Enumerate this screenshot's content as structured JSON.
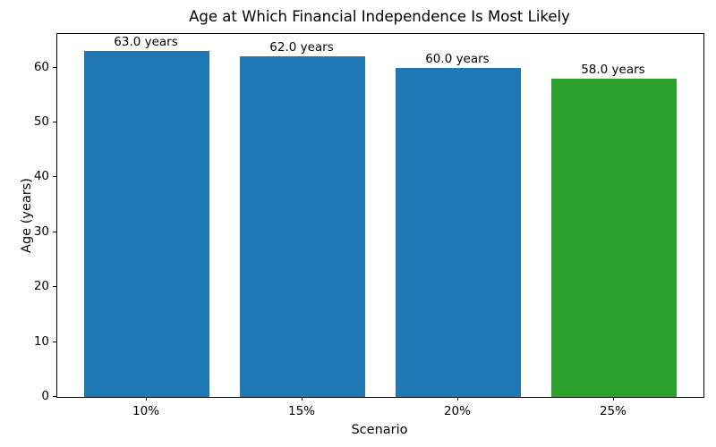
{
  "chart_data": {
    "type": "bar",
    "title": "Age at Which Financial Independence Is Most Likely",
    "xlabel": "Scenario",
    "ylabel": "Age (years)",
    "categories": [
      "10%",
      "15%",
      "20%",
      "25%"
    ],
    "values": [
      63.0,
      62.0,
      60.0,
      58.0
    ],
    "bar_labels": [
      "63.0 years",
      "62.0 years",
      "60.0 years",
      "58.0 years"
    ],
    "bar_colors": [
      "#1f77b4",
      "#1f77b4",
      "#1f77b4",
      "#2ca02c"
    ],
    "yticks": [
      0,
      10,
      20,
      30,
      40,
      50,
      60
    ],
    "ylim": [
      0,
      66.15
    ],
    "grid": false,
    "legend": null,
    "spine_color": "#000000",
    "background_color": "#ffffff"
  }
}
